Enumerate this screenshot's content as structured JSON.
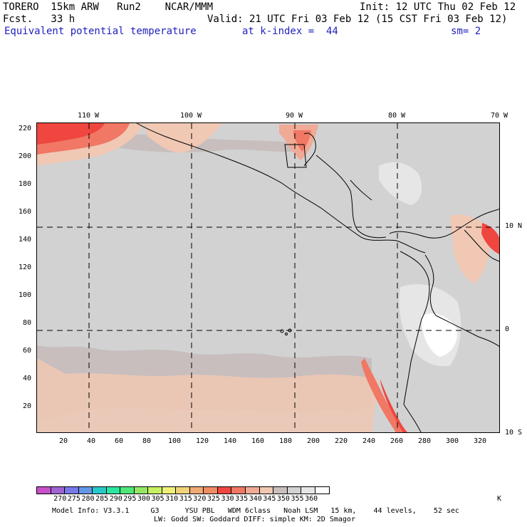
{
  "header": {
    "model": "TORERO  15km ARW   Run2    NCAR/MMM",
    "init": "Init: 12 UTC Thu 02 Feb 12",
    "fcst": "Fcst.   33 h",
    "valid": "Valid: 21 UTC Fri 03 Feb 12 (15 CST Fri 03 Feb 12)",
    "field": "Equivalent potential temperature",
    "level": "at k-index =  44",
    "smooth": "sm= 2"
  },
  "axes": {
    "top_lon_labels": [
      "110 W",
      "100 W",
      "90 W",
      "80 W",
      "70 W"
    ],
    "right_lat_labels": [
      "10 N",
      "0",
      "10 S"
    ],
    "left_ticks": [
      "220",
      "200",
      "180",
      "160",
      "140",
      "120",
      "100",
      "80",
      "60",
      "40",
      "20"
    ],
    "bottom_ticks": [
      "20",
      "40",
      "60",
      "80",
      "100",
      "120",
      "140",
      "160",
      "180",
      "200",
      "220",
      "240",
      "260",
      "280",
      "300",
      "320"
    ]
  },
  "colorbar": {
    "labels": [
      "270",
      "275",
      "280",
      "285",
      "290",
      "295",
      "300",
      "305",
      "310",
      "315",
      "320",
      "325",
      "330",
      "335",
      "340",
      "345",
      "350",
      "355",
      "360"
    ],
    "unit": "K",
    "colors": [
      "#c850c8",
      "#a064d2",
      "#7878e6",
      "#6496e6",
      "#28c8c8",
      "#28e6a0",
      "#50e678",
      "#96e664",
      "#c8f064",
      "#f0f078",
      "#f0d278",
      "#f0aa78",
      "#f08c64",
      "#f04640",
      "#f07864",
      "#f0aa96",
      "#f0c8b4",
      "#c8bebe",
      "#d2d2d2",
      "#e6e6e6",
      "#ffffff"
    ]
  },
  "footer": {
    "line1": "Model Info: V3.3.1     G3      YSU PBL   WDM 6class   Noah LSM   15 km,    44 levels,    52 sec",
    "line2": "LW: Godd SW: Goddard DIFF: simple KM: 2D Smagor"
  }
}
